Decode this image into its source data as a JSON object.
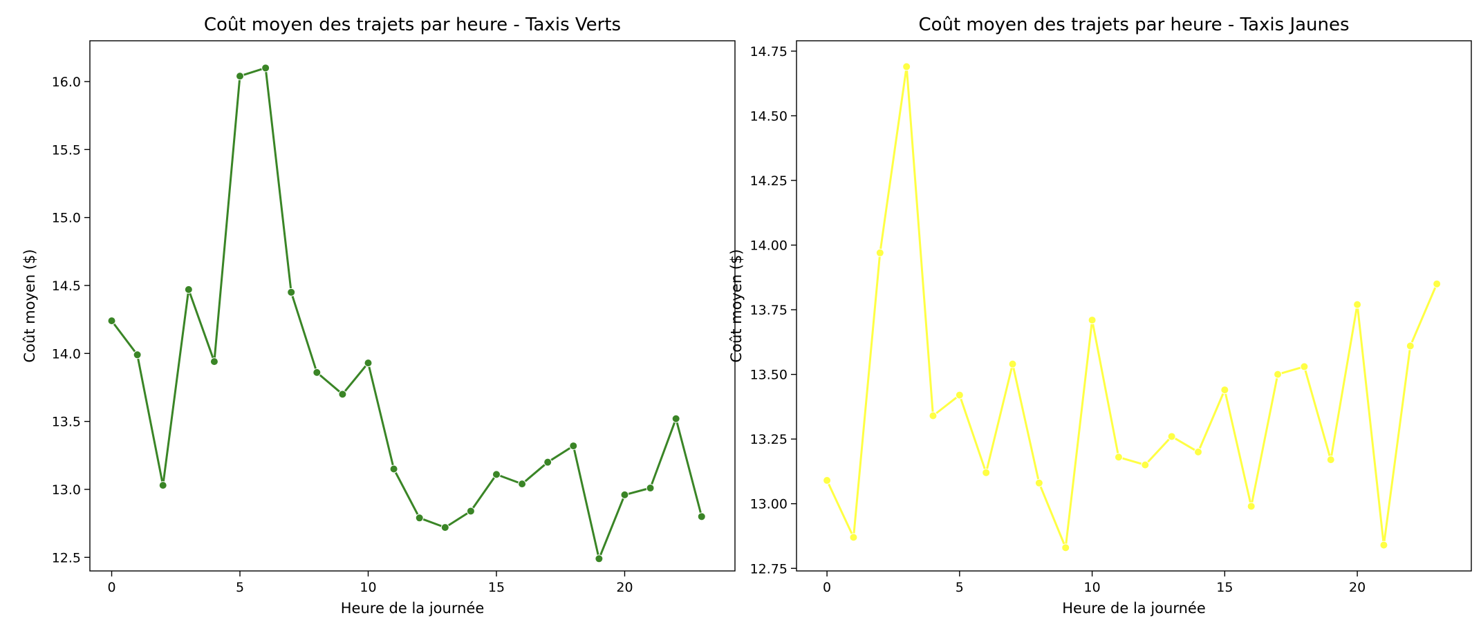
{
  "chart_data": [
    {
      "type": "line",
      "title": "Coût moyen des trajets par heure - Taxis Verts",
      "xlabel": "Heure de la journée",
      "ylabel": "Coût moyen ($)",
      "color": "#3a8526",
      "xlim": [
        -0.85,
        24.3
      ],
      "ylim": [
        12.4,
        16.3
      ],
      "xticks": [
        0,
        5,
        10,
        15,
        20
      ],
      "xtick_labels": [
        "0",
        "5",
        "10",
        "15",
        "20"
      ],
      "yticks": [
        12.5,
        13.0,
        13.5,
        14.0,
        14.5,
        15.0,
        15.5,
        16.0
      ],
      "ytick_labels": [
        "12.5",
        "13.0",
        "13.5",
        "14.0",
        "14.5",
        "15.0",
        "15.5",
        "16.0"
      ],
      "grid": false,
      "legend": false,
      "series": [
        {
          "x": [
            0,
            1,
            2,
            3,
            4,
            5,
            6,
            7,
            8,
            9,
            10,
            11,
            12,
            13,
            14,
            15,
            16,
            17,
            18,
            19,
            20,
            21,
            22,
            23
          ],
          "y": [
            14.24,
            13.99,
            13.03,
            14.47,
            13.94,
            16.04,
            16.1,
            14.45,
            13.86,
            13.7,
            13.93,
            13.15,
            12.79,
            12.72,
            12.84,
            13.11,
            13.04,
            13.2,
            13.32,
            12.49,
            12.96,
            13.01,
            13.52,
            12.8
          ]
        }
      ]
    },
    {
      "type": "line",
      "title": "Coût moyen des trajets par heure - Taxis Jaunes",
      "xlabel": "Heure de la journée",
      "ylabel": "Coût moyen ($)",
      "color": "#ffff44",
      "xlim": [
        -1.15,
        24.3
      ],
      "ylim": [
        12.74,
        14.79
      ],
      "xticks": [
        0,
        5,
        10,
        15,
        20
      ],
      "xtick_labels": [
        "0",
        "5",
        "10",
        "15",
        "20"
      ],
      "yticks": [
        12.75,
        13.0,
        13.25,
        13.5,
        13.75,
        14.0,
        14.25,
        14.5,
        14.75
      ],
      "ytick_labels": [
        "12.75",
        "13.00",
        "13.25",
        "13.50",
        "13.75",
        "14.00",
        "14.25",
        "14.50",
        "14.75"
      ],
      "grid": false,
      "legend": false,
      "series": [
        {
          "x": [
            0,
            1,
            2,
            3,
            4,
            5,
            6,
            7,
            8,
            9,
            10,
            11,
            12,
            13,
            14,
            15,
            16,
            17,
            18,
            19,
            20,
            21,
            22,
            23
          ],
          "y": [
            13.09,
            12.87,
            13.97,
            14.69,
            13.34,
            13.42,
            13.12,
            13.54,
            13.08,
            12.83,
            13.71,
            13.18,
            13.15,
            13.26,
            13.2,
            13.44,
            12.99,
            13.5,
            13.53,
            13.17,
            13.77,
            12.84,
            13.61,
            13.85
          ]
        }
      ]
    }
  ]
}
